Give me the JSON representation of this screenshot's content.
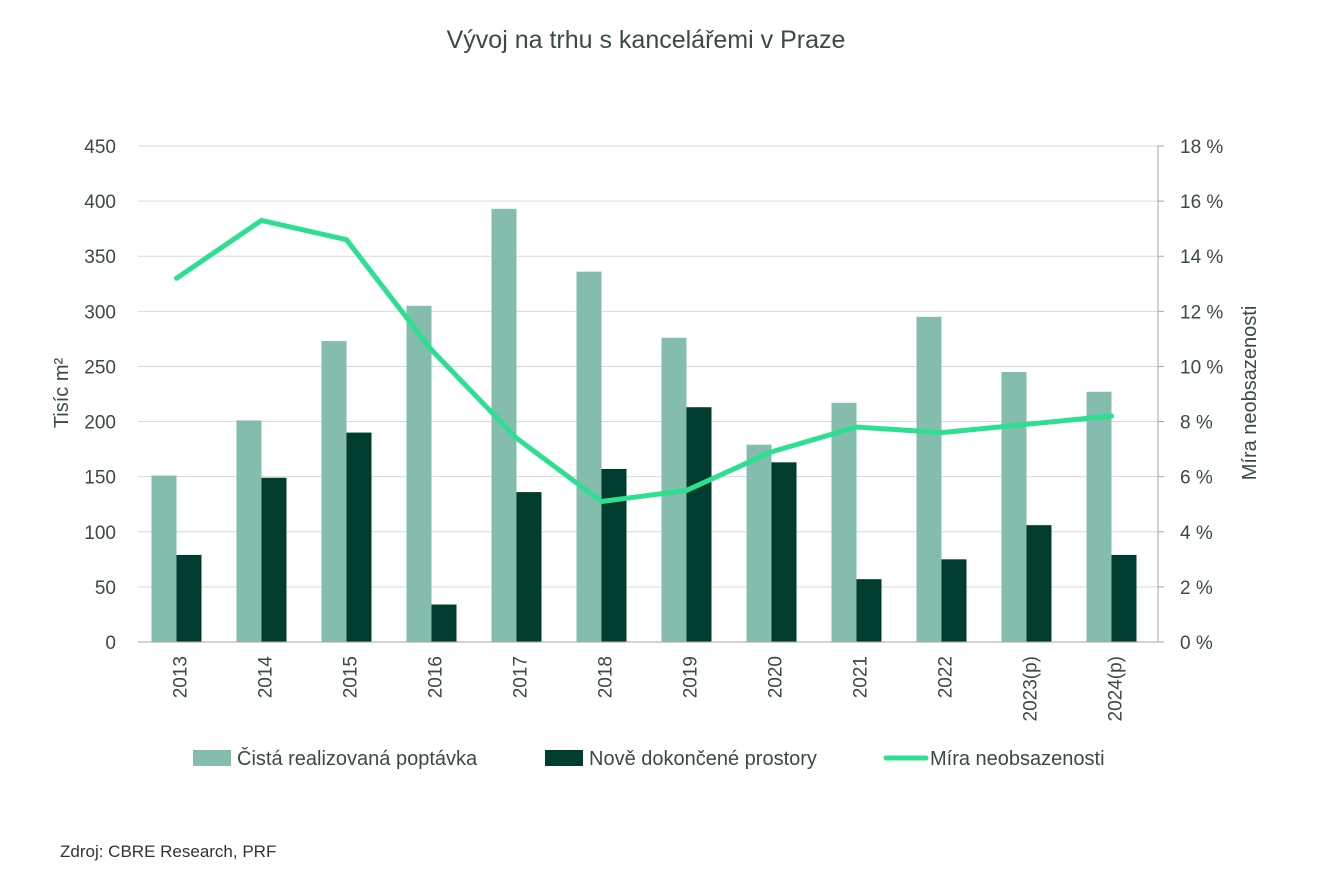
{
  "chart_data": {
    "type": "bar",
    "title": "Vývoj na trhu s kancelářemi v Praze",
    "categories": [
      "2013",
      "2014",
      "2015",
      "2016",
      "2017",
      "2018",
      "2019",
      "2020",
      "2021",
      "2022",
      "2023(p)",
      "2024(p)"
    ],
    "series": [
      {
        "name": "Čistá realizovaná poptávka",
        "kind": "bar",
        "axis": "left",
        "color": "#84bcad",
        "values": [
          151,
          201,
          273,
          305,
          393,
          336,
          276,
          179,
          217,
          295,
          245,
          227
        ]
      },
      {
        "name": "Nově dokončené prostory",
        "kind": "bar",
        "axis": "left",
        "color": "#003d2e",
        "values": [
          79,
          149,
          190,
          34,
          136,
          157,
          213,
          163,
          57,
          75,
          106,
          79
        ]
      },
      {
        "name": "Míra neobsazenosti",
        "kind": "line",
        "axis": "right",
        "color": "#2ddf90",
        "values": [
          13.2,
          15.3,
          14.6,
          10.6,
          7.4,
          5.1,
          5.5,
          6.9,
          7.8,
          7.6,
          7.9,
          8.2
        ]
      }
    ],
    "ylabel": "Tisíc m²",
    "y2label": "Míra neobsazenosti",
    "ylim": [
      0,
      450
    ],
    "y2lim": [
      0,
      18
    ],
    "yticks": [
      "0",
      "50",
      "100",
      "150",
      "200",
      "250",
      "300",
      "350",
      "400",
      "450"
    ],
    "y2ticks": [
      "0 %",
      "2 %",
      "4 %",
      "6 %",
      "8 %",
      "10 %",
      "12 %",
      "14 %",
      "16 %",
      "18 %"
    ],
    "grid": true,
    "legend_position": "bottom"
  },
  "source": "Zdroj: CBRE Research, PRF"
}
